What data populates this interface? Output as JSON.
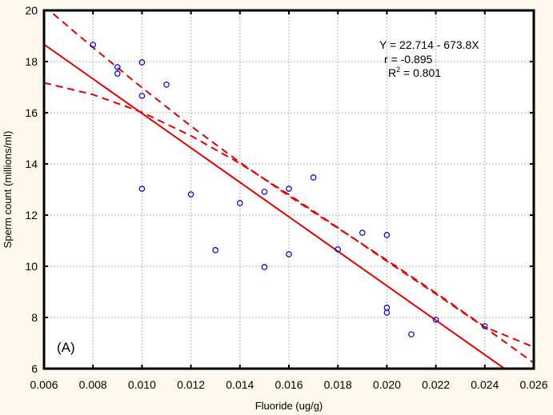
{
  "chart_data": {
    "type": "scatter",
    "title": "",
    "xlabel": "Fluoride (ug/g)",
    "ylabel": "Sperm count (millions/ml)",
    "xlim": [
      0.006,
      0.026
    ],
    "ylim": [
      6,
      20
    ],
    "xticks": [
      0.006,
      0.008,
      0.01,
      0.012,
      0.014,
      0.016,
      0.018,
      0.02,
      0.022,
      0.024,
      0.026
    ],
    "xtick_labels": [
      "0.006",
      "0.008",
      "0.010",
      "0.012",
      "0.014",
      "0.016",
      "0.018",
      "0.020",
      "0.022",
      "0.024",
      "0.026"
    ],
    "yticks": [
      6,
      8,
      10,
      12,
      14,
      16,
      18,
      20
    ],
    "ytick_labels": [
      "6",
      "8",
      "10",
      "12",
      "14",
      "16",
      "18",
      "20"
    ],
    "grid": true,
    "panel_label": "(A)",
    "annotations": {
      "equation": "Y = 22.714 - 673.8X",
      "r": "r = -0.895",
      "r2_prefix": "R",
      "r2_sup": "2",
      "r2_value": " = 0.801"
    },
    "series": [
      {
        "name": "observations",
        "marker": "open-circle",
        "color": "#0000cc",
        "points": [
          [
            0.008,
            18.66
          ],
          [
            0.009,
            17.78
          ],
          [
            0.009,
            17.53
          ],
          [
            0.01,
            17.97
          ],
          [
            0.01,
            16.66
          ],
          [
            0.011,
            17.1
          ],
          [
            0.01,
            13.03
          ],
          [
            0.012,
            12.81
          ],
          [
            0.013,
            10.63
          ],
          [
            0.014,
            12.47
          ],
          [
            0.015,
            12.91
          ],
          [
            0.015,
            9.97
          ],
          [
            0.016,
            13.03
          ],
          [
            0.016,
            10.47
          ],
          [
            0.017,
            13.47
          ],
          [
            0.018,
            10.66
          ],
          [
            0.019,
            11.31
          ],
          [
            0.02,
            11.22
          ],
          [
            0.02,
            8.38
          ],
          [
            0.02,
            8.19
          ],
          [
            0.021,
            7.34
          ],
          [
            0.022,
            7.91
          ],
          [
            0.024,
            7.66
          ]
        ]
      }
    ],
    "regression": {
      "intercept": 22.714,
      "slope": -673.8,
      "color": "#e00000",
      "style": "solid"
    },
    "confidence_band": {
      "color": "#e00000",
      "style": "dashed",
      "x": [
        0.006,
        0.008,
        0.01,
        0.012,
        0.014,
        0.016,
        0.018,
        0.02,
        0.022,
        0.024,
        0.026
      ],
      "upper": [
        20.17,
        18.55,
        16.98,
        15.48,
        14.06,
        12.75,
        11.49,
        10.24,
        8.96,
        7.63,
        6.84
      ],
      "lower": [
        17.17,
        16.71,
        16.02,
        15.1,
        14.02,
        12.8,
        11.51,
        10.2,
        8.92,
        7.61,
        6.22
      ]
    }
  }
}
